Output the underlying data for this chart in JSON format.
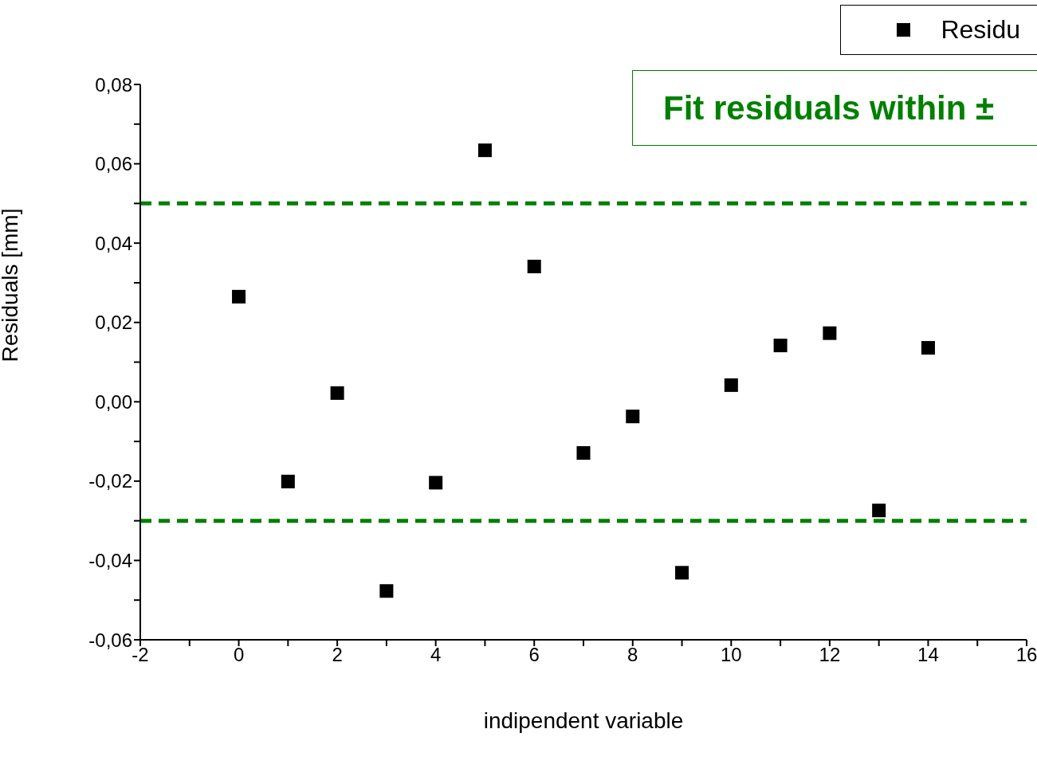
{
  "chart_data": {
    "type": "scatter",
    "xlabel": "indipendent variable",
    "ylabel": "Residuals    [mm]",
    "annotations": [
      "Fit residuals within ±"
    ],
    "x": [
      0,
      1,
      2,
      3,
      4,
      5,
      6,
      7,
      8,
      9,
      10,
      11,
      12,
      13,
      14
    ],
    "series": [
      {
        "name": "Residu",
        "color": "#000000",
        "values": [
          0.0265,
          -0.0201,
          0.0022,
          -0.0477,
          -0.0204,
          0.0634,
          0.0341,
          -0.0129,
          -0.0037,
          -0.0431,
          0.0042,
          0.0142,
          0.0173,
          -0.0274,
          0.0136
        ]
      }
    ],
    "xlim": [
      -2,
      16
    ],
    "xticks": [
      -2,
      {
        "value": -1,
        "label": null
      },
      0,
      {
        "value": 1,
        "label": null
      },
      2,
      {
        "value": 3,
        "label": null
      },
      4,
      {
        "value": 5,
        "label": null
      },
      6,
      {
        "value": 7,
        "label": null
      },
      8,
      {
        "value": 9,
        "label": null
      },
      10,
      {
        "value": 11,
        "label": null
      },
      12,
      {
        "value": 13,
        "label": null
      },
      14,
      {
        "value": 15,
        "label": null
      },
      16
    ],
    "ylim": [
      -0.06,
      0.08
    ],
    "yticks": [
      {
        "value": -0.06,
        "label": "-0,06"
      },
      {
        "value": -0.05,
        "label": null
      },
      {
        "value": -0.04,
        "label": "-0,04"
      },
      {
        "value": -0.03,
        "label": null
      },
      {
        "value": -0.02,
        "label": "-0,02"
      },
      {
        "value": -0.01,
        "label": null
      },
      {
        "value": 0,
        "label": "0,00"
      },
      {
        "value": 0.01,
        "label": null
      },
      {
        "value": 0.02,
        "label": "0,02"
      },
      {
        "value": 0.03,
        "label": null
      },
      {
        "value": 0.04,
        "label": "0,04"
      },
      {
        "value": 0.05,
        "label": null
      },
      {
        "value": 0.06,
        "label": "0,06"
      },
      {
        "value": 0.07,
        "label": null
      },
      {
        "value": 0.08,
        "label": "0,08"
      }
    ],
    "ref_lines": [
      {
        "axis": "y",
        "value": 0.05,
        "color": "#008000",
        "line_style": "dashed"
      },
      {
        "axis": "y",
        "value": -0.03,
        "color": "#008000",
        "line_style": "dashed"
      }
    ],
    "marker": "square",
    "legend": "top right",
    "grid": false
  }
}
